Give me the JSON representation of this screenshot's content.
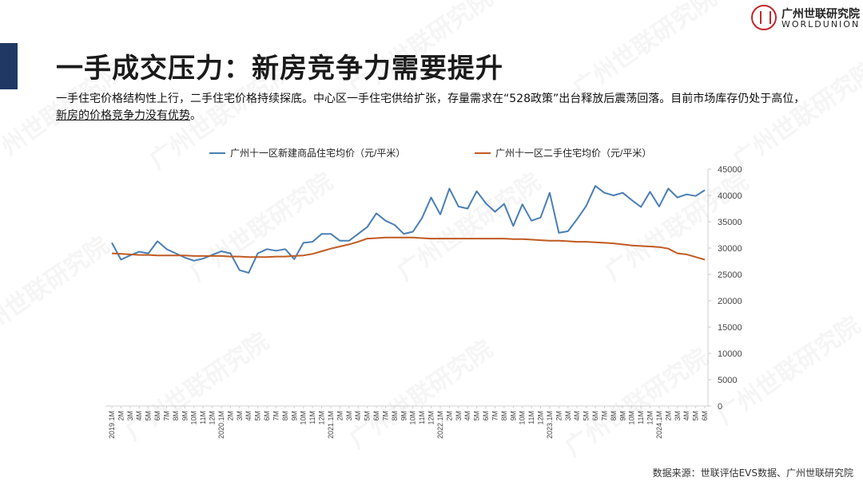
{
  "header": {
    "title": "一手成交压力：新房竞争力需要提升",
    "desc_part1": "一手住宅价格结构性上行，二手住宅价格持续探底。中心区一手住宅供给扩张，存量需求在“528政策”出台释放后震荡回落。目前市场库存仍处于高位，",
    "desc_part2": "新房的价格竞争力没有优势",
    "desc_part3": "。"
  },
  "logo": {
    "cn": "广州世联研究院",
    "en": "WORLDUNION",
    "color": "#c0272d"
  },
  "watermark": {
    "text": "广州世联研究院"
  },
  "footer": {
    "source": "数据来源：世联评估EVS数据、广州世联研究院"
  },
  "chart_data": {
    "type": "line",
    "title": "",
    "xlabel": "",
    "ylabel": "",
    "ylim": [
      0,
      45000
    ],
    "yticks": [
      0,
      5000,
      10000,
      15000,
      20000,
      25000,
      30000,
      35000,
      40000,
      45000
    ],
    "grid": false,
    "legend_position": "top",
    "x": [
      "2019.1M",
      "2M",
      "3M",
      "4M",
      "5M",
      "6M",
      "7M",
      "8M",
      "9M",
      "10M",
      "11M",
      "12M",
      "2020.1M",
      "2M",
      "3M",
      "4M",
      "5M",
      "6M",
      "7M",
      "8M",
      "9M",
      "10M",
      "11M",
      "12M",
      "2021.1M",
      "2M",
      "3M",
      "4M",
      "5M",
      "6M",
      "7M",
      "8M",
      "9M",
      "10M",
      "11M",
      "12M",
      "2022.1M",
      "2M",
      "3M",
      "4M",
      "5M",
      "6M",
      "7M",
      "8M",
      "9M",
      "10M",
      "11M",
      "12M",
      "2023.1M",
      "2M",
      "3M",
      "4M",
      "5M",
      "6M",
      "7M",
      "8M",
      "9M",
      "10M",
      "11M",
      "12M",
      "2024.1M",
      "2M",
      "3M",
      "4M",
      "5M",
      "6M"
    ],
    "series": [
      {
        "name": "广州十一区新建商品住宅均价（元/平米）",
        "color": "#4a7eb5",
        "values": [
          31000,
          27800,
          28600,
          29300,
          29000,
          31300,
          29800,
          29000,
          28200,
          27600,
          28000,
          28700,
          29400,
          29000,
          25800,
          25300,
          29000,
          29800,
          29500,
          29800,
          27900,
          31000,
          31200,
          32700,
          32700,
          31400,
          31400,
          32700,
          34000,
          36600,
          35200,
          34400,
          32700,
          33100,
          35700,
          39600,
          36400,
          41300,
          37900,
          37500,
          40800,
          38500,
          36900,
          38400,
          34200,
          38300,
          35200,
          35800,
          40500,
          32900,
          33200,
          35500,
          38000,
          41800,
          40500,
          40000,
          40500,
          39100,
          37800,
          40700,
          37900,
          41300,
          39600,
          40200,
          39900,
          41000
        ]
      },
      {
        "name": "广州十一区二手住宅均价（元/平米）",
        "color": "#c05a22",
        "values": [
          29000,
          28900,
          28800,
          28700,
          28700,
          28600,
          28600,
          28600,
          28600,
          28500,
          28500,
          28500,
          28500,
          28400,
          28400,
          28300,
          28300,
          28300,
          28400,
          28400,
          28500,
          28600,
          28900,
          29400,
          29900,
          30300,
          30700,
          31200,
          31800,
          31900,
          32000,
          32000,
          32000,
          32000,
          31900,
          31800,
          31800,
          31800,
          31800,
          31800,
          31800,
          31800,
          31800,
          31800,
          31700,
          31700,
          31600,
          31500,
          31400,
          31400,
          31300,
          31200,
          31200,
          31100,
          31000,
          30900,
          30700,
          30500,
          30400,
          30300,
          30200,
          29900,
          29000,
          28800,
          28300,
          27800
        ]
      }
    ]
  }
}
